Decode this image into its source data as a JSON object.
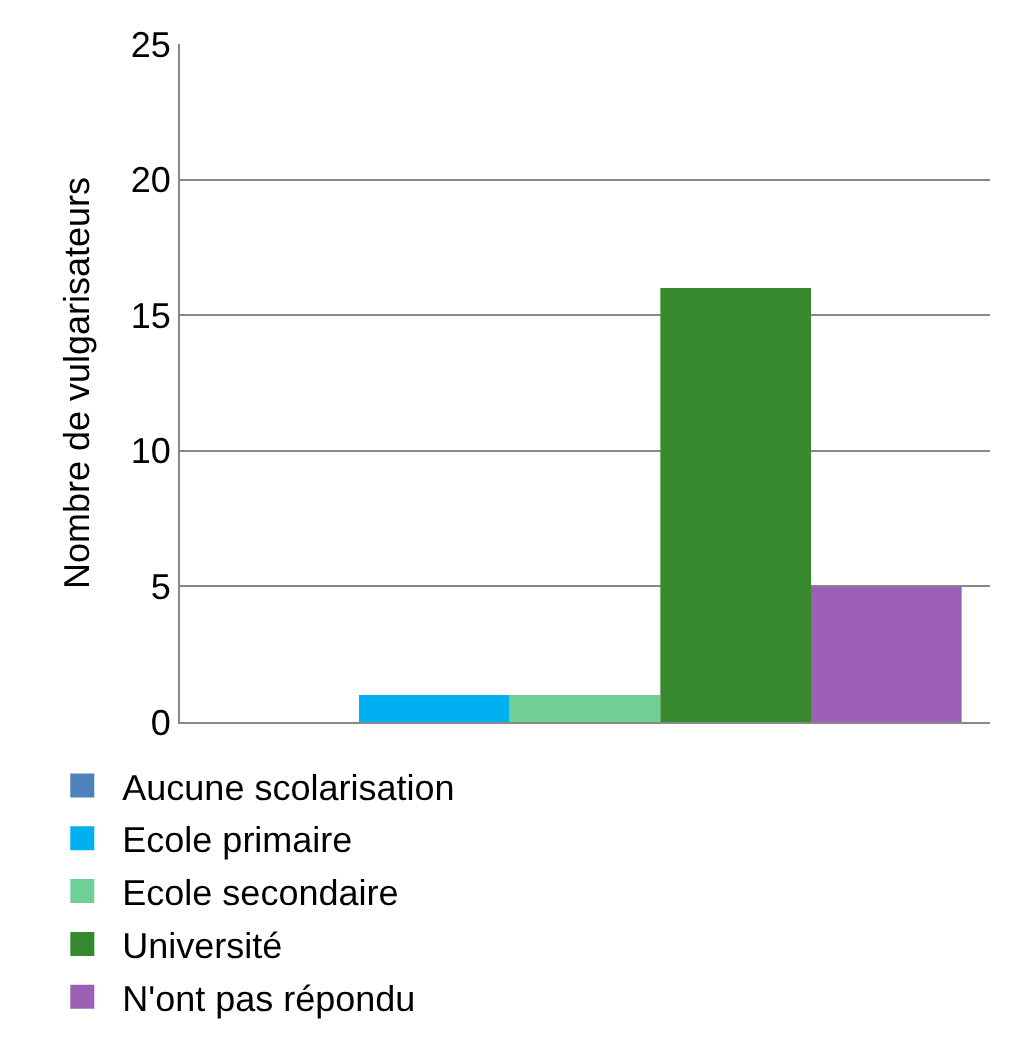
{
  "chart_data": {
    "type": "bar",
    "categories": [
      null
    ],
    "ylabel": "Nombre de vulgarisateurs",
    "ylim": [
      0,
      25
    ],
    "yticks": [
      0,
      5,
      10,
      15,
      20,
      25
    ],
    "grid": "y",
    "legend": "bottom",
    "series": [
      {
        "name": "Aucune scolarisation",
        "color": "#4f81bd",
        "values": [
          0
        ]
      },
      {
        "name": "Ecole primaire",
        "color": "#00b0f0",
        "values": [
          1
        ]
      },
      {
        "name": "Ecole secondaire",
        "color": "#6fcf97",
        "values": [
          1
        ]
      },
      {
        "name": "Université",
        "color": "#37892d",
        "values": [
          16
        ]
      },
      {
        "name": "N'ont pas répondu",
        "color": "#9b5fb5",
        "values": [
          5
        ]
      }
    ]
  }
}
